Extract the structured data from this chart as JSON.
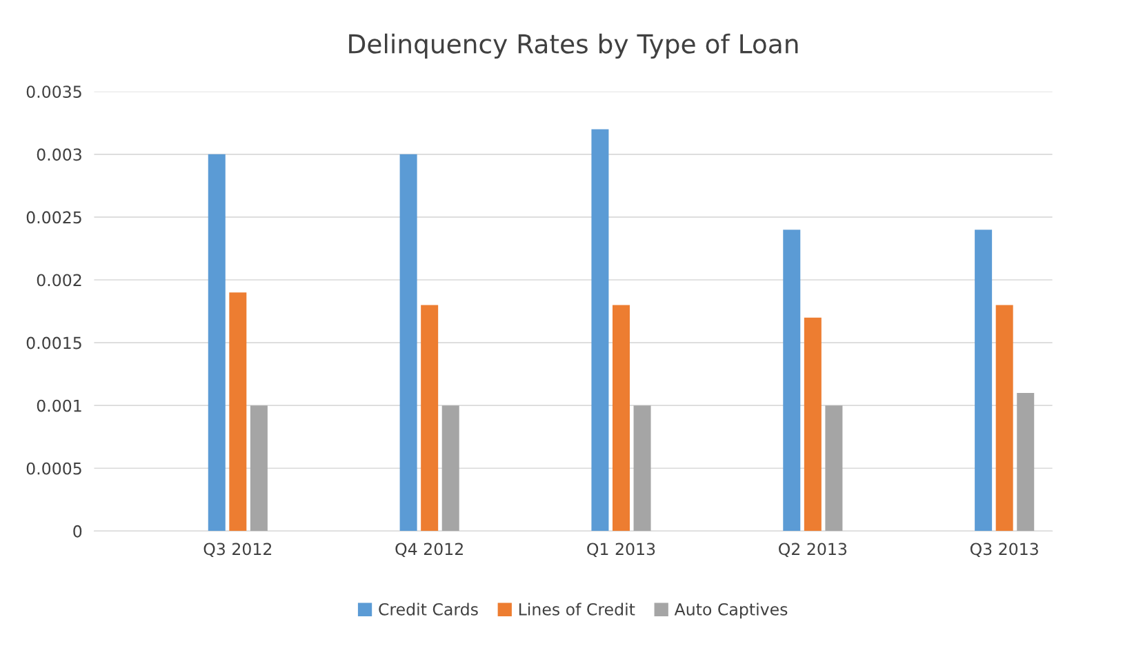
{
  "chart_data": {
    "type": "bar",
    "title": "Delinquency Rates by Type of Loan",
    "categories": [
      "Q3 2012",
      "Q4 2012",
      "Q1 2013",
      "Q2 2013",
      "Q3 2013"
    ],
    "series": [
      {
        "name": "Credit Cards",
        "color": "#5b9bd5",
        "values": [
          0.003,
          0.003,
          0.0032,
          0.0024,
          0.0024
        ]
      },
      {
        "name": "Lines of Credit",
        "color": "#ed7d31",
        "values": [
          0.0019,
          0.0018,
          0.0018,
          0.0017,
          0.0018
        ]
      },
      {
        "name": "Auto Captives",
        "color": "#a5a5a5",
        "values": [
          0.001,
          0.001,
          0.001,
          0.001,
          0.0011
        ]
      }
    ],
    "ylim": [
      0,
      0.0035
    ],
    "yticks": [
      0,
      0.0005,
      0.001,
      0.0015,
      0.002,
      0.0025,
      0.003,
      0.0035
    ],
    "grid": "y",
    "legend": "bottom"
  }
}
